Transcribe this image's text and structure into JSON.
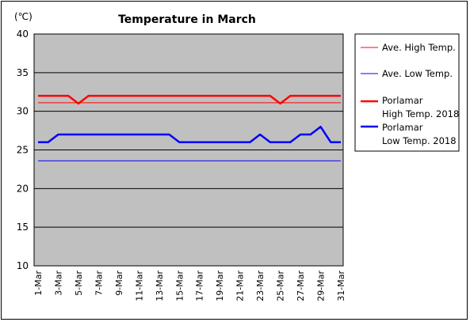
{
  "chart_data": {
    "type": "line",
    "title": "Temperature in March",
    "unit_label": "(℃)",
    "ylim": [
      10,
      40
    ],
    "yticks": [
      10,
      15,
      20,
      25,
      30,
      35,
      40
    ],
    "grid": "horizontal",
    "legend_position": "right",
    "x": [
      "1-Mar",
      "2-Mar",
      "3-Mar",
      "4-Mar",
      "5-Mar",
      "6-Mar",
      "7-Mar",
      "8-Mar",
      "9-Mar",
      "10-Mar",
      "11-Mar",
      "12-Mar",
      "13-Mar",
      "14-Mar",
      "15-Mar",
      "16-Mar",
      "17-Mar",
      "18-Mar",
      "19-Mar",
      "20-Mar",
      "21-Mar",
      "22-Mar",
      "23-Mar",
      "24-Mar",
      "25-Mar",
      "26-Mar",
      "27-Mar",
      "28-Mar",
      "29-Mar",
      "30-Mar",
      "31-Mar"
    ],
    "xtick_labels": [
      "1-Mar",
      "3-Mar",
      "5-Mar",
      "7-Mar",
      "9-Mar",
      "11-Mar",
      "13-Mar",
      "15-Mar",
      "17-Mar",
      "19-Mar",
      "21-Mar",
      "23-Mar",
      "25-Mar",
      "27-Mar",
      "29-Mar",
      "31-Mar"
    ],
    "series": [
      {
        "name": "Ave. High Temp.",
        "color": "#ff0000",
        "width": 1,
        "values": [
          31.1,
          31.1,
          31.1,
          31.1,
          31.1,
          31.1,
          31.1,
          31.1,
          31.1,
          31.1,
          31.1,
          31.1,
          31.1,
          31.1,
          31.1,
          31.1,
          31.1,
          31.1,
          31.1,
          31.1,
          31.1,
          31.1,
          31.1,
          31.1,
          31.1,
          31.1,
          31.1,
          31.1,
          31.1,
          31.1,
          31.1
        ]
      },
      {
        "name": "Ave. Low Temp.",
        "color": "#0000ff",
        "width": 1,
        "values": [
          23.6,
          23.6,
          23.6,
          23.6,
          23.6,
          23.6,
          23.6,
          23.6,
          23.6,
          23.6,
          23.6,
          23.6,
          23.6,
          23.6,
          23.6,
          23.6,
          23.6,
          23.6,
          23.6,
          23.6,
          23.6,
          23.6,
          23.6,
          23.6,
          23.6,
          23.6,
          23.6,
          23.6,
          23.6,
          23.6,
          23.6
        ]
      },
      {
        "name": "Porlamar High Temp. 2018",
        "legend_lines": [
          "Porlamar",
          "High Temp. 2018"
        ],
        "color": "#ff0000",
        "width": 2.5,
        "values": [
          32,
          32,
          32,
          32,
          31,
          32,
          32,
          32,
          32,
          32,
          32,
          32,
          32,
          32,
          32,
          32,
          32,
          32,
          32,
          32,
          32,
          32,
          32,
          32,
          31,
          32,
          32,
          32,
          32,
          32,
          32
        ]
      },
      {
        "name": "Porlamar Low Temp. 2018",
        "legend_lines": [
          "Porlamar",
          "Low Temp. 2018"
        ],
        "color": "#0000ff",
        "width": 2.5,
        "values": [
          26,
          26,
          27,
          27,
          27,
          27,
          27,
          27,
          27,
          27,
          27,
          27,
          27,
          27,
          26,
          26,
          26,
          26,
          26,
          26,
          26,
          26,
          27,
          26,
          26,
          26,
          27,
          27,
          28,
          26,
          26
        ]
      }
    ]
  }
}
